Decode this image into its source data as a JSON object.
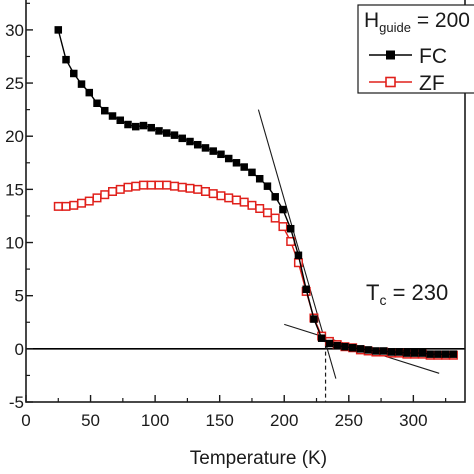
{
  "chart_data": {
    "type": "line",
    "xlabel": "Temperature (K)",
    "ylabel": "",
    "xlim": [
      0,
      340
    ],
    "ylim": [
      -5,
      33
    ],
    "x_ticks": [
      0,
      50,
      100,
      150,
      200,
      250,
      300
    ],
    "x_tick_labels": [
      "0",
      "50",
      "100",
      "150",
      "200",
      "250",
      "300"
    ],
    "y_ticks": [
      -5,
      0,
      5,
      10,
      15,
      20,
      25,
      30
    ],
    "y_tick_labels": [
      "-5",
      "0",
      "5",
      "10",
      "15",
      "20",
      "25",
      "30"
    ],
    "grid": false,
    "legend": {
      "title_main": "H",
      "title_sub": "guide",
      "title_rest": " = 200",
      "placement": "top-right",
      "entries": [
        {
          "label": "FC",
          "marker": "filled-square",
          "color": "#000000"
        },
        {
          "label": "ZF",
          "marker": "open-square",
          "color": "#e0201b"
        }
      ]
    },
    "annotation": {
      "main": "T",
      "sub": "c",
      "rest": " = 230"
    },
    "zero_line_y": 0,
    "tc_x": 232,
    "tangent_lines": [
      {
        "x": [
          180,
          240
        ],
        "y": [
          22.5,
          -2.8
        ]
      },
      {
        "x": [
          200,
          320
        ],
        "y": [
          2.3,
          -2.3
        ]
      }
    ],
    "series": [
      {
        "name": "FC",
        "color": "#000000",
        "marker": "filled-square",
        "x": [
          25,
          31,
          37,
          43,
          49,
          55,
          61,
          67,
          73,
          79,
          85,
          91,
          97,
          103,
          109,
          115,
          121,
          127,
          133,
          139,
          145,
          151,
          157,
          163,
          169,
          175,
          181,
          187,
          193,
          199,
          205,
          211,
          217,
          223,
          229,
          235,
          241,
          247,
          253,
          259,
          265,
          271,
          277,
          283,
          289,
          295,
          301,
          307,
          313,
          319,
          325,
          331
        ],
        "y": [
          30.0,
          27.2,
          25.9,
          24.9,
          24.1,
          23.1,
          22.4,
          21.9,
          21.5,
          21.1,
          20.9,
          21.0,
          20.8,
          20.5,
          20.3,
          20.1,
          19.8,
          19.5,
          19.2,
          18.9,
          18.6,
          18.3,
          17.9,
          17.5,
          17.1,
          16.6,
          16.0,
          15.3,
          14.3,
          13.1,
          11.3,
          8.8,
          5.6,
          2.8,
          1.0,
          0.5,
          0.3,
          0.2,
          0.1,
          0.0,
          -0.1,
          -0.2,
          -0.2,
          -0.3,
          -0.3,
          -0.4,
          -0.4,
          -0.4,
          -0.5,
          -0.5,
          -0.5,
          -0.5
        ]
      },
      {
        "name": "ZF",
        "color": "#e0201b",
        "marker": "open-square",
        "x": [
          25,
          31,
          37,
          43,
          49,
          55,
          61,
          67,
          73,
          79,
          85,
          91,
          97,
          103,
          109,
          115,
          121,
          127,
          133,
          139,
          145,
          151,
          157,
          163,
          169,
          175,
          181,
          187,
          193,
          199,
          205,
          211,
          217,
          223,
          229,
          235,
          241,
          247,
          253,
          259,
          265,
          271,
          277,
          283,
          289,
          295,
          301,
          307,
          313,
          319,
          325,
          331
        ],
        "y": [
          13.4,
          13.4,
          13.5,
          13.7,
          13.9,
          14.2,
          14.5,
          14.8,
          15.0,
          15.2,
          15.3,
          15.4,
          15.4,
          15.4,
          15.4,
          15.3,
          15.2,
          15.1,
          15.0,
          14.8,
          14.6,
          14.4,
          14.2,
          14.0,
          13.8,
          13.5,
          13.2,
          12.8,
          12.3,
          11.5,
          10.1,
          8.1,
          5.4,
          2.9,
          1.2,
          0.7,
          0.4,
          0.2,
          0.1,
          -0.1,
          -0.2,
          -0.3,
          -0.3,
          -0.4,
          -0.4,
          -0.5,
          -0.5,
          -0.5,
          -0.6,
          -0.6,
          -0.6,
          -0.6
        ]
      }
    ]
  }
}
